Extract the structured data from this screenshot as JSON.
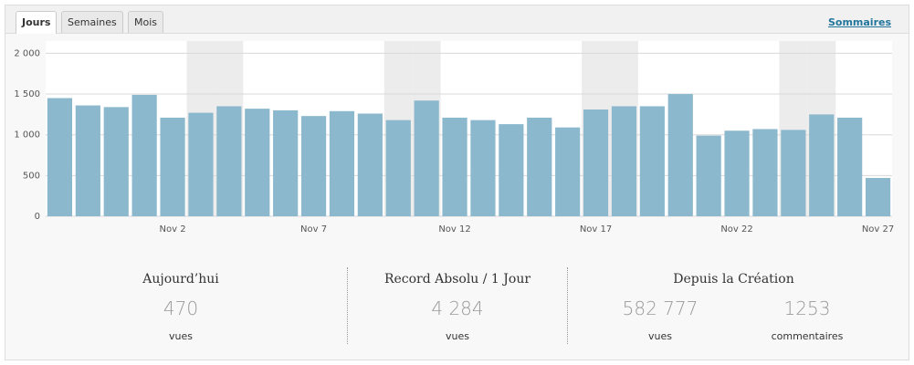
{
  "tabs": [
    "Jours",
    "Semaines",
    "Mois"
  ],
  "active_tab": 0,
  "summary_link": "Sommaires",
  "chart_data": {
    "type": "bar",
    "categories": [
      null,
      null,
      null,
      null,
      "Nov 2",
      null,
      null,
      null,
      null,
      "Nov 7",
      null,
      null,
      null,
      null,
      "Nov 12",
      null,
      null,
      null,
      null,
      "Nov 17",
      null,
      null,
      null,
      null,
      "Nov 22",
      null,
      null,
      null,
      null,
      "Nov 27"
    ],
    "values": [
      1450,
      1360,
      1340,
      1490,
      1210,
      1270,
      1350,
      1320,
      1300,
      1230,
      1290,
      1260,
      1180,
      1420,
      1210,
      1180,
      1130,
      1210,
      1090,
      1310,
      1350,
      1350,
      1500,
      990,
      1050,
      1070,
      1060,
      1250,
      1210,
      470
    ],
    "color": "#8cb8cd",
    "weekend": [
      5,
      6,
      12,
      13,
      19,
      20,
      26,
      27
    ],
    "weekend_color": "#ececec",
    "ylim": [
      0,
      2150
    ],
    "yticks": [
      0,
      500,
      {
        "value": 1000,
        "label": "1 000"
      },
      {
        "value": 1500,
        "label": "1 500"
      },
      {
        "value": 2000,
        "label": "2 000"
      }
    ],
    "grid": true
  },
  "stats": [
    {
      "title": "Aujourd’hui",
      "items": [
        {
          "value": "470",
          "label": "vues"
        }
      ]
    },
    {
      "title": "Record Absolu / 1 Jour",
      "items": [
        {
          "value": "4 284",
          "label": "vues"
        }
      ]
    },
    {
      "title": "Depuis la Création",
      "items": [
        {
          "value": "582 777",
          "label": "vues"
        },
        {
          "value": "1253",
          "label": "commentaires"
        }
      ]
    }
  ]
}
